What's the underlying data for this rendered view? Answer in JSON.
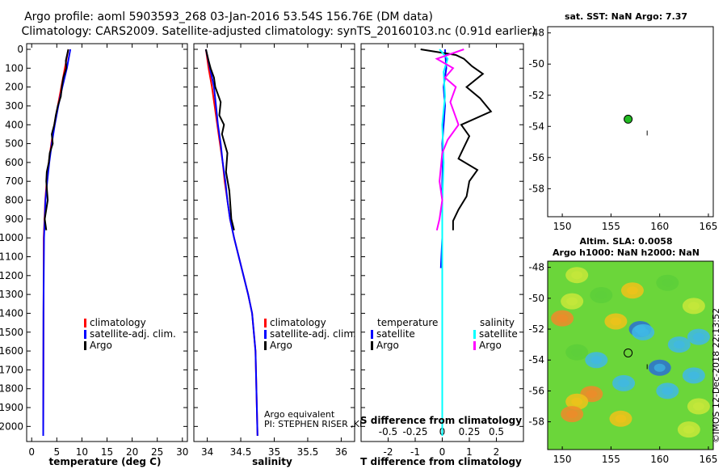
{
  "title": {
    "line1": "Argo profile: aoml 5903593_268 03-Jan-2016 53.54S 156.76E (DM data)",
    "line2": "Climatology: CARS2009. Satellite-adjusted climatology: synTS_20160103.nc (0.91d earlier)"
  },
  "colors": {
    "clim": "#ff0000",
    "sat": "#0000ff",
    "argo": "#000000",
    "sal_sat": "#00ffff",
    "sal_argo": "#ff00ff",
    "marker": "#22bb22"
  },
  "chart_data": [
    {
      "type": "line",
      "name": "temperature-profile",
      "xlabel": "temperature (deg C)",
      "xlim": [
        -1,
        31
      ],
      "ylim": [
        2080,
        -30
      ],
      "xticks": [
        "0",
        "5",
        "10",
        "15",
        "20",
        "25",
        "30"
      ],
      "yticks": [
        "0",
        "100",
        "200",
        "300",
        "400",
        "500",
        "600",
        "700",
        "800",
        "900",
        "1000",
        "1100",
        "1200",
        "1300",
        "1400",
        "1500",
        "1600",
        "1700",
        "1800",
        "1900",
        "2000"
      ],
      "legend": [
        "climatology",
        "satellite-adj. clim.",
        "Argo"
      ],
      "series": [
        {
          "name": "climatology",
          "color": "#ff0000",
          "x": [
            7.3,
            6.6,
            5.9,
            5.2,
            4.5,
            3.9,
            3.4,
            3.0,
            2.7,
            2.55,
            2.4,
            2.3
          ],
          "y": [
            0,
            100,
            200,
            300,
            400,
            500,
            600,
            700,
            800,
            900,
            1000,
            2050
          ]
        },
        {
          "name": "satellite-adj. clim.",
          "color": "#0000ff",
          "x": [
            7.7,
            7.0,
            6.1,
            5.3,
            4.6,
            4.0,
            3.5,
            3.1,
            2.75,
            2.6,
            2.45,
            2.35,
            2.3
          ],
          "y": [
            0,
            100,
            200,
            300,
            400,
            500,
            600,
            700,
            800,
            900,
            1000,
            1400,
            2050
          ]
        },
        {
          "name": "Argo",
          "color": "#000000",
          "x": [
            7.3,
            6.8,
            6.9,
            6.3,
            6.0,
            5.8,
            5.2,
            4.8,
            4.5,
            4.0,
            4.2,
            3.6,
            3.4,
            3.0,
            2.9,
            3.2,
            2.6,
            2.9
          ],
          "y": [
            0,
            60,
            100,
            150,
            200,
            250,
            300,
            350,
            400,
            450,
            500,
            550,
            600,
            650,
            700,
            800,
            900,
            960
          ]
        }
      ]
    },
    {
      "type": "line",
      "name": "salinity-profile",
      "xlabel": "salinity",
      "xlim": [
        33.8,
        36.2
      ],
      "ylim": [
        2080,
        -30
      ],
      "xticks": [
        "34",
        "34.5",
        "35",
        "35.5",
        "36"
      ],
      "legend": [
        "climatology",
        "satellite-adj. clim.",
        "Argo"
      ],
      "annotations": [
        "Argo equivalent",
        "PI: STEPHEN RISER ,KENNETH JOHNSON"
      ],
      "series": [
        {
          "name": "climatology",
          "color": "#ff0000",
          "x": [
            33.98,
            34.02,
            34.07,
            34.11,
            34.15,
            34.19,
            34.23,
            34.26,
            34.3,
            34.34,
            34.4,
            34.47,
            34.54,
            34.61,
            34.67,
            34.72,
            34.75
          ],
          "y": [
            0,
            100,
            200,
            300,
            400,
            500,
            600,
            700,
            800,
            900,
            1000,
            1100,
            1200,
            1300,
            1400,
            1600,
            2050
          ]
        },
        {
          "name": "satellite-adj. clim.",
          "color": "#0000ff",
          "x": [
            33.98,
            34.04,
            34.1,
            34.13,
            34.16,
            34.2,
            34.23,
            34.27,
            34.3,
            34.34,
            34.4,
            34.47,
            34.54,
            34.61,
            34.67,
            34.72,
            34.75
          ],
          "y": [
            0,
            100,
            200,
            300,
            400,
            500,
            600,
            700,
            800,
            900,
            1000,
            1100,
            1200,
            1300,
            1400,
            1600,
            2050
          ]
        },
        {
          "name": "Argo",
          "color": "#000000",
          "x": [
            33.98,
            34.02,
            34.05,
            34.1,
            34.12,
            34.2,
            34.18,
            34.25,
            34.22,
            34.3,
            34.28,
            34.33,
            34.35,
            34.36,
            34.4
          ],
          "y": [
            0,
            60,
            100,
            150,
            200,
            280,
            350,
            400,
            450,
            550,
            650,
            750,
            850,
            900,
            960
          ]
        }
      ]
    },
    {
      "type": "line",
      "name": "difference-from-climatology",
      "xlabel": "T difference from climatology",
      "xlabel_top": "S difference from climatology",
      "xlim": [
        -3,
        3
      ],
      "ylim": [
        2080,
        -30
      ],
      "xticks": [
        "-2",
        "-1",
        "0",
        "1",
        "2"
      ],
      "sticks": [
        "-0.5",
        "-0.25",
        "0",
        "0.25",
        "0.5"
      ],
      "legend_title_left": "temperature",
      "legend_title_right": "salinity",
      "legend_left": [
        "satellite",
        "Argo"
      ],
      "legend_right": [
        "satellite",
        "Argo"
      ],
      "series": [
        {
          "name": "T satellite",
          "color": "#0000ff",
          "x": [
            0.1,
            0.15,
            0.05,
            0.1,
            0.05,
            0.0,
            0.02,
            0.0,
            0.0,
            0.0,
            0.0,
            -0.05
          ],
          "y": [
            0,
            100,
            200,
            300,
            400,
            500,
            600,
            700,
            800,
            900,
            1000,
            1160
          ]
        },
        {
          "name": "T Argo",
          "color": "#000000",
          "x": [
            -0.8,
            0.5,
            0.8,
            1.1,
            1.5,
            0.9,
            1.4,
            1.8,
            0.7,
            1.0,
            0.8,
            0.6,
            1.3,
            1.0,
            0.9,
            0.6,
            0.4,
            0.4
          ],
          "y": [
            0,
            30,
            50,
            90,
            130,
            200,
            260,
            330,
            400,
            460,
            520,
            580,
            640,
            700,
            780,
            850,
            910,
            960
          ]
        },
        {
          "name": "S satellite",
          "color": "#00ffff",
          "x": [
            -0.1,
            0.2,
            0.05,
            0.1,
            0.0,
            0.05,
            0.0,
            0.0,
            0.0,
            0.0
          ],
          "y": [
            0,
            50,
            120,
            250,
            400,
            600,
            800,
            1000,
            1500,
            2050
          ]
        },
        {
          "name": "S Argo",
          "color": "#ff00ff",
          "x": [
            0.8,
            -0.2,
            0.4,
            0.1,
            0.5,
            0.3,
            0.6,
            0.2,
            0.0,
            -0.1,
            0.0,
            -0.1,
            -0.2
          ],
          "y": [
            0,
            50,
            100,
            150,
            200,
            280,
            400,
            480,
            550,
            700,
            800,
            900,
            960
          ]
        }
      ]
    },
    {
      "type": "scatter",
      "name": "sst-map",
      "title": "sat. SST: NaN Argo: 7.37",
      "xlim": [
        148.5,
        165.5
      ],
      "ylim": [
        -59.8,
        -47.6
      ],
      "xticks": [
        "150",
        "155",
        "160",
        "165"
      ],
      "yticks": [
        "-48",
        "-50",
        "-52",
        "-54",
        "-56",
        "-58"
      ],
      "points": [
        {
          "x": 156.76,
          "y": -53.54
        }
      ]
    },
    {
      "type": "heatmap",
      "name": "sla-map",
      "title_line1": "Altim. SLA: 0.0058",
      "title_line2": "Argo h1000: NaN h2000: NaN",
      "xlim": [
        148.5,
        165.5
      ],
      "ylim": [
        -59.8,
        -47.6
      ],
      "xticks": [
        "150",
        "155",
        "160",
        "165"
      ],
      "yticks": [
        "-48",
        "-50",
        "-52",
        "-54",
        "-56",
        "-58"
      ],
      "points": [
        {
          "x": 156.76,
          "y": -53.54
        }
      ],
      "palette": [
        "#2a6fd6",
        "#3fb8e6",
        "#7fe07a",
        "#5ccf3a",
        "#c8e83a",
        "#f0c21a",
        "#f08a2a"
      ]
    }
  ],
  "watermark": "©IMOS 12-Dec-2018 22:13:52"
}
